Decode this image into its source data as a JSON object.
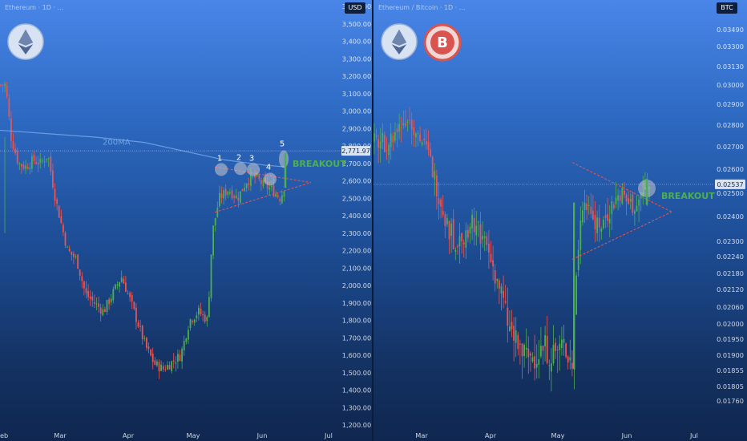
{
  "colors": {
    "up": "#4caf50",
    "down": "#ef5350",
    "ma": "#6fa3e8",
    "breakout": "#4caf50",
    "price_tag_bg": "#d9e3f2",
    "triangle": "#ef5350"
  },
  "left": {
    "currency": "USD",
    "symbol_text": "Ethereum · 1D · ...",
    "logos": [
      "ethereum-logo"
    ]
  },
  "right": {
    "currency": "BTC",
    "symbol_text": "Ethereum / Bitcoin · 1D · ...",
    "logos": [
      "ethereum-logo",
      "bitcoin-logo"
    ]
  },
  "chart_data": [
    {
      "type": "candlestick",
      "title": "",
      "quote_currency": "USD",
      "x_ticks": [
        "Feb",
        "Mar",
        "Apr",
        "May",
        "Jun",
        "Jul"
      ],
      "y_ticks": [
        "3,600.00",
        "3,500.00",
        "3,400.00",
        "3,300.00",
        "3,200.00",
        "3,100.00",
        "3,000.00",
        "2,900.00",
        "2,800.00",
        "2,700.00",
        "2,600.00",
        "2,500.00",
        "2,400.00",
        "2,300.00",
        "2,200.00",
        "2,100.00",
        "2,000.00",
        "1,900.00",
        "1,800.00",
        "1,700.00",
        "1,600.00",
        "1,500.00",
        "1,400.00",
        "1,300.00",
        "1,200.00"
      ],
      "ylim": [
        1200,
        3600
      ],
      "current_price_label": "2,771.97",
      "current_price": 2771.97,
      "ma_label": "200MA",
      "pattern": "symmetrical triangle",
      "breakout_label": "BREAKOUT",
      "touch_labels": [
        "1",
        "2",
        "3",
        "4",
        "5"
      ],
      "path_points": [
        [
          "Feb 1",
          3150
        ],
        [
          "Feb 4",
          2850
        ],
        [
          "Feb 8",
          2700
        ],
        [
          "Feb 12",
          2680
        ],
        [
          "Feb 16",
          2720
        ],
        [
          "Feb 20",
          2700
        ],
        [
          "Feb 24",
          2750
        ],
        [
          "Feb 28",
          2500
        ],
        [
          "Mar 4",
          2200
        ],
        [
          "Mar 8",
          2150
        ],
        [
          "Mar 12",
          1950
        ],
        [
          "Mar 16",
          1900
        ],
        [
          "Mar 20",
          1850
        ],
        [
          "Mar 24",
          1950
        ],
        [
          "Mar 28",
          2050
        ],
        [
          "Apr 1",
          1950
        ],
        [
          "Apr 5",
          1800
        ],
        [
          "Apr 9",
          1650
        ],
        [
          "Apr 13",
          1550
        ],
        [
          "Apr 17",
          1520
        ],
        [
          "Apr 21",
          1560
        ],
        [
          "Apr 25",
          1600
        ],
        [
          "Apr 29",
          1800
        ],
        [
          "May 3",
          1850
        ],
        [
          "May 7",
          1800
        ],
        [
          "May 9",
          2300
        ],
        [
          "May 12",
          2500
        ],
        [
          "May 16",
          2550
        ],
        [
          "May 20",
          2500
        ],
        [
          "May 24",
          2600
        ],
        [
          "May 28",
          2620
        ],
        [
          "Jun 1",
          2580
        ],
        [
          "Jun 5",
          2550
        ],
        [
          "Jun 9",
          2500
        ],
        [
          "Jun 12",
          2620
        ],
        [
          "Jun 14",
          2700
        ]
      ]
    },
    {
      "type": "candlestick",
      "title": "",
      "quote_currency": "BTC",
      "x_ticks": [
        "Mar",
        "Apr",
        "May",
        "Jun",
        "Jul"
      ],
      "y_ticks": [
        "0.03490",
        "0.03300",
        "0.03130",
        "0.03000",
        "0.02900",
        "0.02800",
        "0.02700",
        "0.02600",
        "0.02500",
        "0.02400",
        "0.02300",
        "0.02240",
        "0.02180",
        "0.02120",
        "0.02060",
        "0.02000",
        "0.01950",
        "0.01900",
        "0.01855",
        "0.01805",
        "0.01760"
      ],
      "current_price_label": "0.02537",
      "current_price": 0.02537,
      "pattern": "symmetrical triangle",
      "breakout_label": "BREAKOUT",
      "path_points": [
        [
          "Feb 16",
          0.0272
        ],
        [
          "Feb 20",
          0.0278
        ],
        [
          "Feb 24",
          0.0284
        ],
        [
          "Feb 28",
          0.0278
        ],
        [
          "Mar 4",
          0.0265
        ],
        [
          "Mar 8",
          0.025
        ],
        [
          "Mar 12",
          0.0236
        ],
        [
          "Mar 16",
          0.0228
        ],
        [
          "Mar 20",
          0.0235
        ],
        [
          "Mar 24",
          0.0238
        ],
        [
          "Mar 28",
          0.023
        ],
        [
          "Apr 1",
          0.0222
        ],
        [
          "Apr 5",
          0.0212
        ],
        [
          "Apr 9",
          0.0198
        ],
        [
          "Apr 13",
          0.0192
        ],
        [
          "Apr 17",
          0.0189
        ],
        [
          "Apr 21",
          0.019
        ],
        [
          "Apr 25",
          0.0192
        ],
        [
          "Apr 29",
          0.019
        ],
        [
          "May 3",
          0.0193
        ],
        [
          "May 7",
          0.0188
        ],
        [
          "May 9",
          0.0222
        ],
        [
          "May 12",
          0.025
        ],
        [
          "May 16",
          0.024
        ],
        [
          "May 20",
          0.0236
        ],
        [
          "May 24",
          0.0244
        ],
        [
          "May 28",
          0.025
        ],
        [
          "Jun 1",
          0.0245
        ],
        [
          "Jun 5",
          0.0244
        ],
        [
          "Jun 9",
          0.0252
        ]
      ]
    }
  ]
}
